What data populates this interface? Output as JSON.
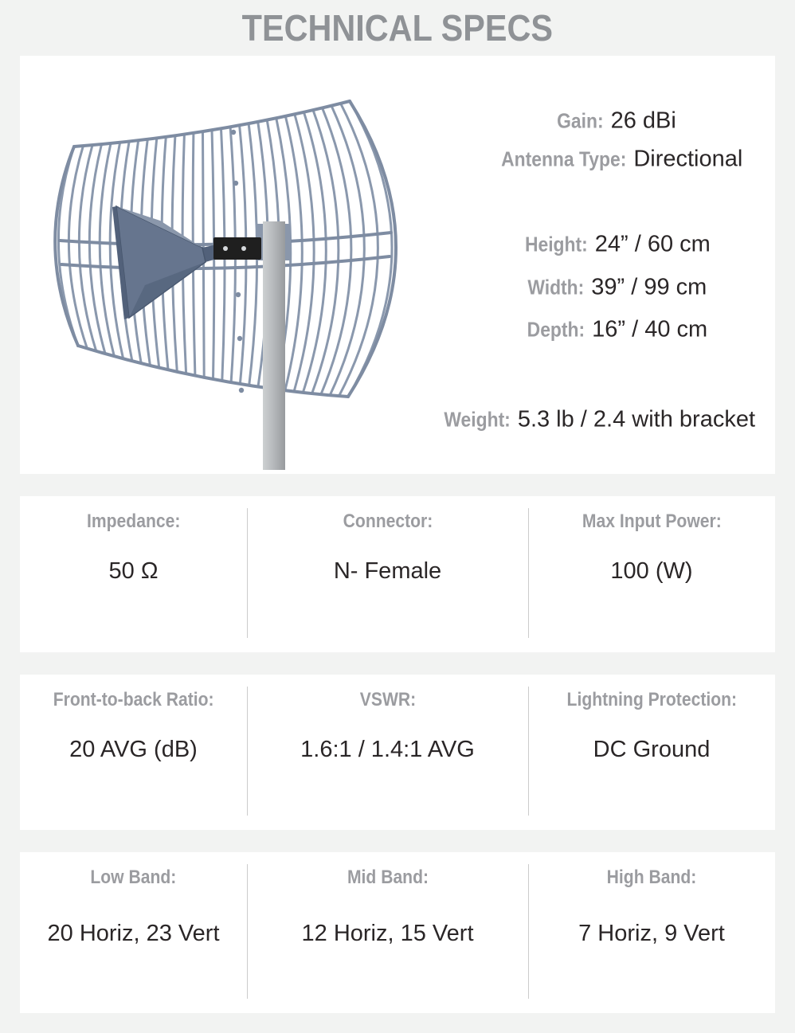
{
  "page": {
    "title": "TECHNICAL SPECS"
  },
  "hero": {
    "image": "grid-parabolic-antenna-on-pole",
    "specs": [
      {
        "label": "Gain:",
        "value": "26 dBi"
      },
      {
        "label": "Antenna Type:",
        "value": "Directional"
      },
      {
        "label": "Height:",
        "value": "24” / 60 cm"
      },
      {
        "label": "Width:",
        "value": "39” / 99 cm"
      },
      {
        "label": "Depth:",
        "value": "16” / 40 cm"
      },
      {
        "label": "Weight:",
        "value": "5.3 lb / 2.4 with bracket"
      }
    ]
  },
  "spec_rows": [
    {
      "cells": [
        {
          "label": "Impedance:",
          "value": "50 Ω"
        },
        {
          "label": "Connector:",
          "value": "N- Female"
        },
        {
          "label": "Max Input Power:",
          "value": "100 (W)"
        }
      ]
    },
    {
      "cells": [
        {
          "label": "Front-to-back Ratio:",
          "value": "20 AVG (dB)"
        },
        {
          "label": "VSWR:",
          "value": "1.6:1 / 1.4:1 AVG"
        },
        {
          "label": "Lightning Protection:",
          "value": "DC Ground"
        }
      ]
    },
    {
      "cells": [
        {
          "label": "Low Band:",
          "value": "20 Horiz, 23 Vert"
        },
        {
          "label": "Mid Band:",
          "value": "12 Horiz, 15 Vert"
        },
        {
          "label": "High Band:",
          "value": "7 Horiz, 9 Vert"
        }
      ]
    }
  ],
  "colors": {
    "ui": {
      "bg": "#f2f3f2",
      "panel": "#ffffff",
      "heading": "#8f9296",
      "label": "#9b9ca0",
      "value": "#2a2627",
      "divider": "#cccccc"
    },
    "antenna": {
      "grid": "#8a98ad",
      "frame": "#7e8ca2",
      "horn": "#66758e",
      "horn_light": "#8a97ab",
      "horn_dark": "#52617a",
      "bracket": "#1f1f1f",
      "pole": "#b7babd",
      "pole_dark": "#989b9e",
      "bolt": "#d6d9dc"
    }
  }
}
